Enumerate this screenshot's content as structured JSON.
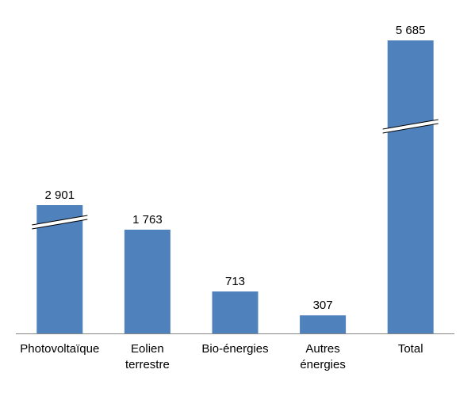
{
  "chart_data": {
    "type": "bar",
    "title": "",
    "xlabel": "",
    "ylabel": "",
    "categories": [
      [
        "Photovoltaïque"
      ],
      [
        "Eolien",
        "terrestre"
      ],
      [
        "Bio-énergies"
      ],
      [
        "Autres",
        "énergies"
      ],
      [
        "Total"
      ]
    ],
    "values": [
      2901,
      1763,
      713,
      307,
      5685
    ],
    "value_labels": [
      "2 901",
      "1 763",
      "713",
      "307",
      "5 685"
    ],
    "broken_bars": [
      0,
      4
    ],
    "grid": false,
    "legend": "none",
    "colors": {
      "bar": "#4f81bd",
      "axis": "#868686",
      "text": "#000000"
    }
  }
}
